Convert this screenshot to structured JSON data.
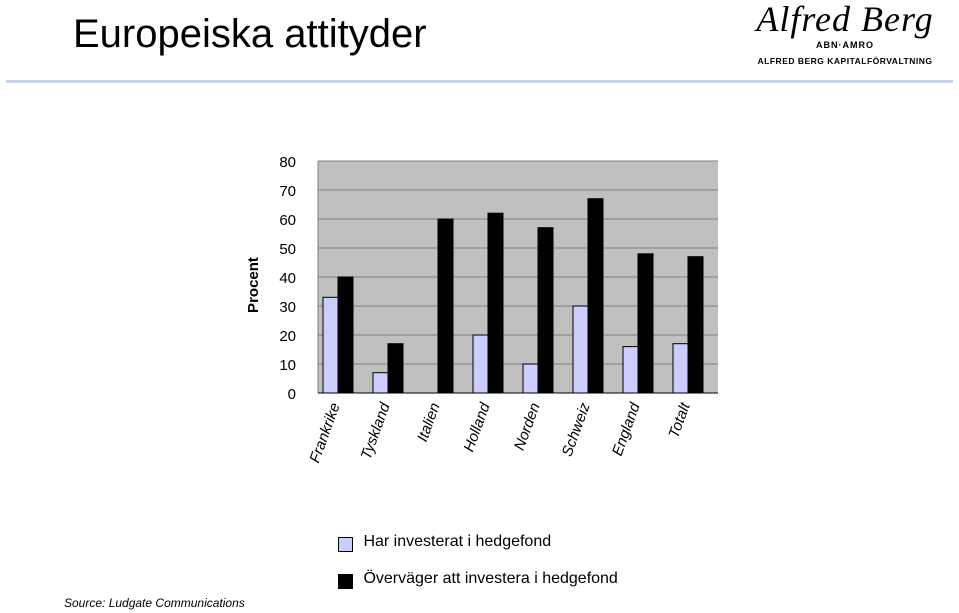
{
  "slide": {
    "title": "Europeiska attityder",
    "source": "Source: Ludgate Communications"
  },
  "logo": {
    "script": "Alfred Berg",
    "sub": "ABN·AMRO",
    "company": "ALFRED BERG KAPITALFÖRVALTNING"
  },
  "colors": {
    "plot_bg": "#c0c0c0",
    "series_invested": "#ccccff",
    "series_considering": "#000000",
    "rule": "#c8d2e6"
  },
  "chart_data": {
    "type": "bar",
    "ylabel": "Procent",
    "ylim": [
      0,
      80
    ],
    "yticks": [
      0,
      10,
      20,
      30,
      40,
      50,
      60,
      70,
      80
    ],
    "grid": true,
    "legend_position": "bottom",
    "categories": [
      "Frankrike",
      "Tyskland",
      "Italien",
      "Holland",
      "Norden",
      "Schweiz",
      "England",
      "Totalt"
    ],
    "series": [
      {
        "name": "Har investerat i hedgefond",
        "values": [
          33,
          7,
          0,
          20,
          10,
          30,
          16,
          17
        ]
      },
      {
        "name": "Överväger att investera i hedgefond",
        "values": [
          40,
          17,
          60,
          62,
          57,
          67,
          48,
          47
        ]
      }
    ]
  }
}
